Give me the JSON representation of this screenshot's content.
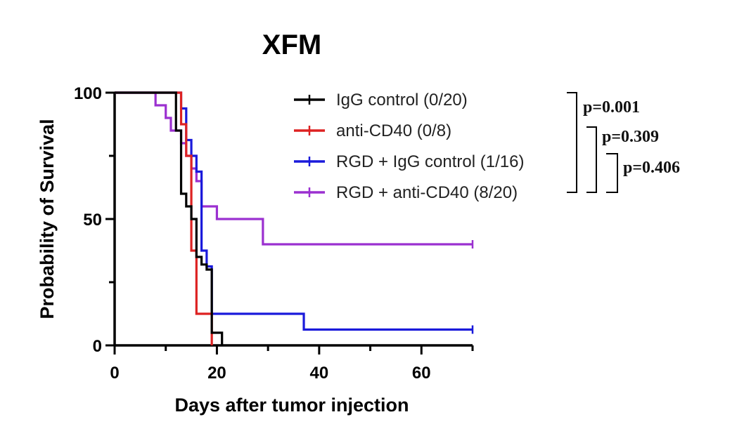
{
  "chart_data": {
    "type": "line",
    "step": true,
    "title": "XFM",
    "xlabel": "Days after tumor injection",
    "ylabel": "Probability of Survival",
    "xlim": [
      0,
      70
    ],
    "ylim": [
      0,
      100
    ],
    "xticks": [
      0,
      20,
      40,
      60
    ],
    "yticks": [
      0,
      50,
      100
    ],
    "grid": false,
    "legend_position": "top-right",
    "series": [
      {
        "name": "IgG control (0/20)",
        "color": "#000000",
        "x": [
          0,
          12,
          13,
          14,
          15,
          16,
          17,
          18,
          19,
          20,
          21
        ],
        "y": [
          100,
          85,
          60,
          55,
          50,
          35,
          32,
          30,
          5,
          5,
          0
        ],
        "censored_at": []
      },
      {
        "name": "anti-CD40 (0/8)",
        "color": "#dd2222",
        "x": [
          0,
          12,
          13,
          14,
          15,
          16,
          19
        ],
        "y": [
          100,
          100,
          87.5,
          75,
          37.5,
          12.5,
          0
        ],
        "censored_at": []
      },
      {
        "name": "RGD + IgG control (1/16)",
        "color": "#1a1adb",
        "x": [
          0,
          12,
          13,
          14,
          15,
          16,
          17,
          18,
          19,
          37,
          70
        ],
        "y": [
          100,
          100,
          93.75,
          81.25,
          75,
          68.75,
          37.5,
          31.25,
          12.5,
          6.25,
          6.25
        ],
        "censored_at": [
          70
        ]
      },
      {
        "name": "RGD + anti-CD40 (8/20)",
        "color": "#9b30d0",
        "x": [
          0,
          8,
          10,
          11,
          12,
          13,
          14,
          15,
          16,
          17,
          20,
          29,
          70
        ],
        "y": [
          100,
          95,
          90,
          85,
          85,
          80,
          75,
          70,
          65,
          55,
          50,
          40,
          40
        ],
        "censored_at": [
          70
        ]
      }
    ],
    "annotations": [
      {
        "text": "p=0.001",
        "compares": [
          "IgG control (0/20)",
          "RGD + anti-CD40 (8/20)"
        ]
      },
      {
        "text": "p=0.309",
        "compares": [
          "anti-CD40 (0/8)",
          "RGD + anti-CD40 (8/20)"
        ]
      },
      {
        "text": "p=0.406",
        "compares": [
          "RGD + IgG control (1/16)",
          "RGD + anti-CD40 (8/20)"
        ]
      }
    ]
  }
}
